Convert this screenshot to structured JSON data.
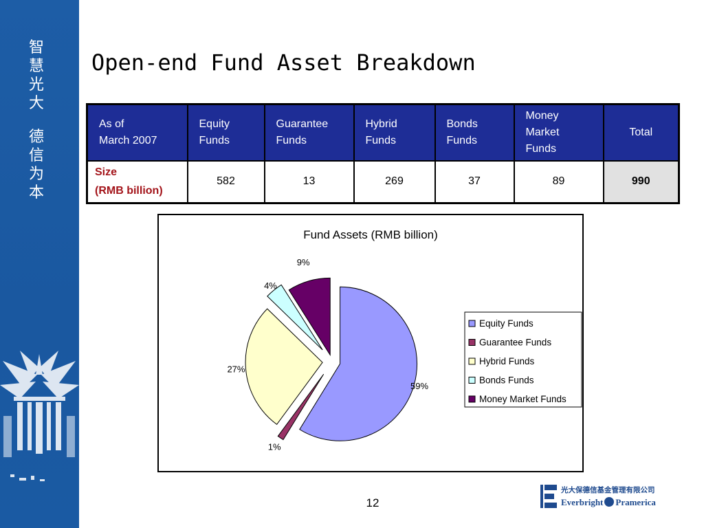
{
  "sidebar": {
    "slogan_top": [
      "智",
      "慧",
      "光",
      "大"
    ],
    "slogan_bottom": [
      "德",
      "信",
      "为",
      "本"
    ]
  },
  "title": "Open-end Fund Asset Breakdown",
  "table": {
    "corner": [
      "As of",
      "March 2007"
    ],
    "headers": [
      [
        "Equity",
        "Funds"
      ],
      [
        "Guarantee",
        "Funds"
      ],
      [
        "Hybrid",
        "Funds"
      ],
      [
        "Bonds",
        "Funds"
      ],
      [
        "Money",
        "Market",
        "Funds"
      ],
      [
        "Total"
      ]
    ],
    "row_label": [
      "Size",
      "(RMB billion)"
    ],
    "values": [
      "582",
      "13",
      "269",
      "37",
      "89",
      "990"
    ]
  },
  "chart_data": {
    "type": "pie",
    "title": "Fund Assets (RMB billion)",
    "categories": [
      "Equity Funds",
      "Guarantee Funds",
      "Hybrid Funds",
      "Bonds Funds",
      "Money Market Funds"
    ],
    "values": [
      582,
      13,
      269,
      37,
      89
    ],
    "percent_labels": [
      "59%",
      "1%",
      "27%",
      "4%",
      "9%"
    ],
    "colors": [
      "#9999ff",
      "#993366",
      "#ffffcc",
      "#ccffff",
      "#660066"
    ],
    "exploded": true,
    "legend_position": "right"
  },
  "footer": {
    "page_number": "12",
    "logo_cn": "光大保德信基金管理有限公司",
    "logo_en_left": "Everbright",
    "logo_en_right": "Pramerica"
  }
}
